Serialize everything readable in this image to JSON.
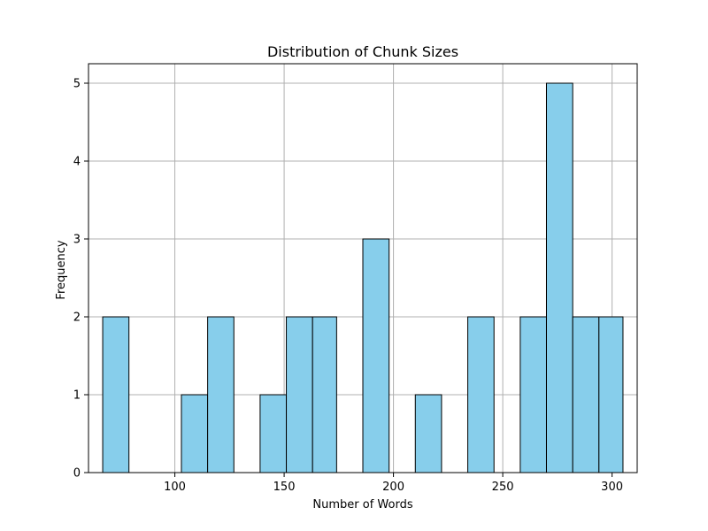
{
  "chart_data": {
    "type": "bar",
    "title": "Distribution of Chunk Sizes",
    "xlabel": "Number of Words",
    "ylabel": "Frequency",
    "xlim": [
      60.5,
      311.5
    ],
    "ylim": [
      0,
      5.25
    ],
    "xticks": [
      100,
      150,
      200,
      250,
      300
    ],
    "yticks": [
      0,
      1,
      2,
      3,
      4,
      5
    ],
    "grid": true,
    "bar_color": "#87ceeb",
    "edge_color": "#000000",
    "bins": [
      {
        "x0": 67,
        "x1": 79,
        "count": 2
      },
      {
        "x0": 79,
        "x1": 91,
        "count": 0
      },
      {
        "x0": 91,
        "x1": 103,
        "count": 0
      },
      {
        "x0": 103,
        "x1": 115,
        "count": 1
      },
      {
        "x0": 115,
        "x1": 127,
        "count": 2
      },
      {
        "x0": 127,
        "x1": 139,
        "count": 0
      },
      {
        "x0": 139,
        "x1": 151,
        "count": 1
      },
      {
        "x0": 151,
        "x1": 163,
        "count": 2
      },
      {
        "x0": 163,
        "x1": 174,
        "count": 2
      },
      {
        "x0": 174,
        "x1": 186,
        "count": 0
      },
      {
        "x0": 186,
        "x1": 198,
        "count": 3
      },
      {
        "x0": 198,
        "x1": 210,
        "count": 0
      },
      {
        "x0": 210,
        "x1": 222,
        "count": 1
      },
      {
        "x0": 222,
        "x1": 234,
        "count": 0
      },
      {
        "x0": 234,
        "x1": 246,
        "count": 2
      },
      {
        "x0": 246,
        "x1": 258,
        "count": 0
      },
      {
        "x0": 258,
        "x1": 270,
        "count": 2
      },
      {
        "x0": 270,
        "x1": 282,
        "count": 5
      },
      {
        "x0": 282,
        "x1": 294,
        "count": 2
      },
      {
        "x0": 294,
        "x1": 305,
        "count": 2
      }
    ]
  }
}
